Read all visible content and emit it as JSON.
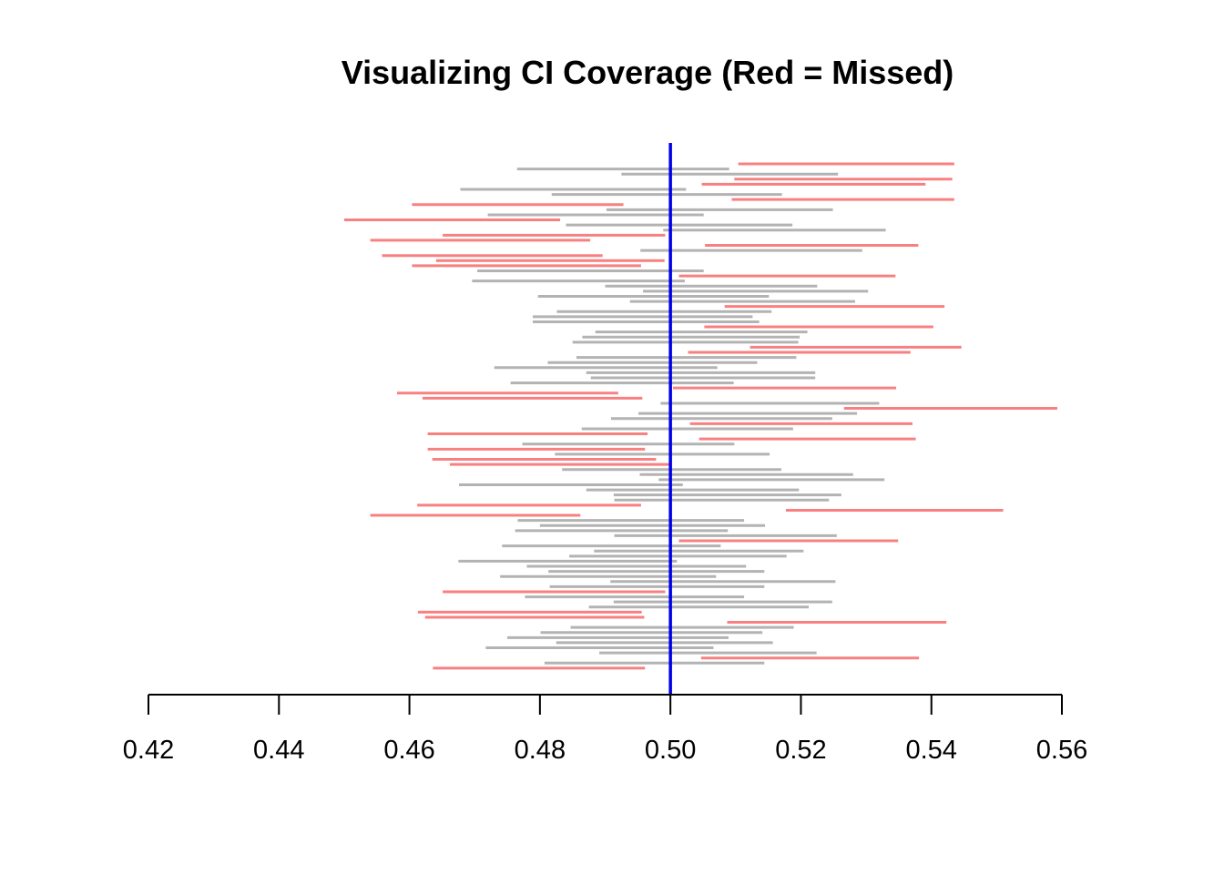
{
  "chart_data": {
    "type": "interval",
    "title": "Visualizing CI Coverage (Red = Missed)",
    "xlabel": "",
    "ylabel": "",
    "xlim": [
      0.42,
      0.56
    ],
    "x_ticks": [
      "0.42",
      "0.44",
      "0.46",
      "0.48",
      "0.50",
      "0.52",
      "0.54",
      "0.56"
    ],
    "reference_line": 0.5,
    "colors": {
      "covered": "#b3b3b3",
      "missed": "#f88080",
      "reference": "#0000e6"
    },
    "intervals": [
      [
        0.5104,
        0.5435
      ],
      [
        0.4765,
        0.509
      ],
      [
        0.4925,
        0.5257
      ],
      [
        0.5098,
        0.5432
      ],
      [
        0.5048,
        0.5391
      ],
      [
        0.4678,
        0.5024
      ],
      [
        0.4818,
        0.5171
      ],
      [
        0.5094,
        0.5435
      ],
      [
        0.4604,
        0.4928
      ],
      [
        0.4902,
        0.5249
      ],
      [
        0.472,
        0.5051
      ],
      [
        0.45,
        0.4831
      ],
      [
        0.484,
        0.5187
      ],
      [
        0.4989,
        0.533
      ],
      [
        0.4651,
        0.4992
      ],
      [
        0.454,
        0.4877
      ],
      [
        0.5053,
        0.538
      ],
      [
        0.4954,
        0.5294
      ],
      [
        0.4558,
        0.4896
      ],
      [
        0.4641,
        0.4991
      ],
      [
        0.4604,
        0.4955
      ],
      [
        0.4704,
        0.5051
      ],
      [
        0.5013,
        0.5345
      ],
      [
        0.4696,
        0.5022
      ],
      [
        0.49,
        0.5225
      ],
      [
        0.4958,
        0.5303
      ],
      [
        0.4797,
        0.5151
      ],
      [
        0.4938,
        0.5283
      ],
      [
        0.5083,
        0.542
      ],
      [
        0.4826,
        0.5155
      ],
      [
        0.4789,
        0.5126
      ],
      [
        0.4789,
        0.5136
      ],
      [
        0.5052,
        0.5403
      ],
      [
        0.4885,
        0.521
      ],
      [
        0.4865,
        0.5198
      ],
      [
        0.485,
        0.5196
      ],
      [
        0.5122,
        0.5446
      ],
      [
        0.5027,
        0.5368
      ],
      [
        0.4856,
        0.5193
      ],
      [
        0.4812,
        0.5133
      ],
      [
        0.473,
        0.5072
      ],
      [
        0.4871,
        0.5222
      ],
      [
        0.4878,
        0.5222
      ],
      [
        0.4755,
        0.5097
      ],
      [
        0.5004,
        0.5346
      ],
      [
        0.4581,
        0.492
      ],
      [
        0.462,
        0.4957
      ],
      [
        0.4985,
        0.532
      ],
      [
        0.5266,
        0.5593
      ],
      [
        0.4951,
        0.5286
      ],
      [
        0.4909,
        0.5248
      ],
      [
        0.503,
        0.5371
      ],
      [
        0.4864,
        0.5188
      ],
      [
        0.4628,
        0.4965
      ],
      [
        0.5044,
        0.5376
      ],
      [
        0.4773,
        0.5098
      ],
      [
        0.4628,
        0.4961
      ],
      [
        0.4823,
        0.5152
      ],
      [
        0.4635,
        0.4978
      ],
      [
        0.4662,
        0.4998
      ],
      [
        0.4834,
        0.517
      ],
      [
        0.4953,
        0.528
      ],
      [
        0.4982,
        0.5328
      ],
      [
        0.4676,
        0.5019
      ],
      [
        0.4871,
        0.5197
      ],
      [
        0.4913,
        0.5262
      ],
      [
        0.4914,
        0.5243
      ],
      [
        0.4612,
        0.4955
      ],
      [
        0.5177,
        0.551
      ],
      [
        0.454,
        0.4862
      ],
      [
        0.4766,
        0.5113
      ],
      [
        0.48,
        0.5145
      ],
      [
        0.4762,
        0.5088
      ],
      [
        0.4914,
        0.5255
      ],
      [
        0.5013,
        0.5349
      ],
      [
        0.4742,
        0.5077
      ],
      [
        0.4883,
        0.5204
      ],
      [
        0.4845,
        0.5178
      ],
      [
        0.4675,
        0.501
      ],
      [
        0.478,
        0.5116
      ],
      [
        0.4813,
        0.5144
      ],
      [
        0.4739,
        0.507
      ],
      [
        0.4908,
        0.5253
      ],
      [
        0.4815,
        0.5144
      ],
      [
        0.4651,
        0.4992
      ],
      [
        0.4777,
        0.5113
      ],
      [
        0.4913,
        0.5248
      ],
      [
        0.4875,
        0.5212
      ],
      [
        0.4613,
        0.4956
      ],
      [
        0.4624,
        0.496
      ],
      [
        0.5087,
        0.5423
      ],
      [
        0.4847,
        0.5189
      ],
      [
        0.4801,
        0.5141
      ],
      [
        0.475,
        0.5089
      ],
      [
        0.4825,
        0.5157
      ],
      [
        0.4717,
        0.5066
      ],
      [
        0.4891,
        0.5224
      ],
      [
        0.5047,
        0.5381
      ],
      [
        0.4807,
        0.5144
      ],
      [
        0.4636,
        0.4961
      ]
    ]
  }
}
